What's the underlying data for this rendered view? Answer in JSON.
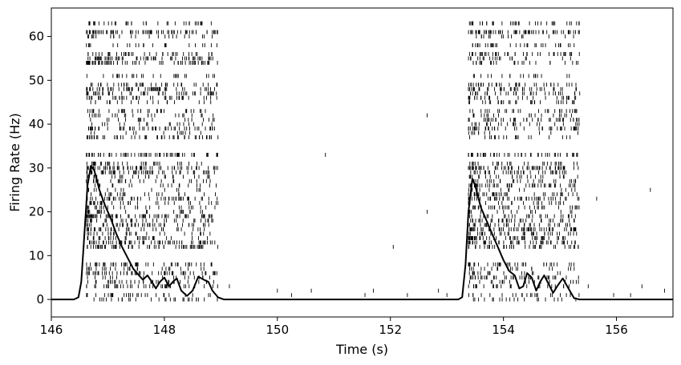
{
  "chart_data": {
    "type": "line",
    "xlabel": "Time (s)",
    "ylabel": "Firing Rate (Hz)",
    "xlim": [
      146,
      157
    ],
    "ylim": [
      -4,
      66.5
    ],
    "grid": false,
    "legend": "none",
    "x_ticks": [
      146,
      148,
      150,
      152,
      154,
      156
    ],
    "y_ticks": [
      0,
      10,
      20,
      30,
      40,
      50,
      60
    ],
    "colors": {
      "line": "#000000",
      "raster": "#000000",
      "background": "#ffffff"
    },
    "series": [
      {
        "kind": "smoothed-firing-rate",
        "points": [
          [
            146.0,
            0
          ],
          [
            146.4,
            0
          ],
          [
            146.48,
            0.5
          ],
          [
            146.53,
            4
          ],
          [
            146.58,
            14
          ],
          [
            146.64,
            26
          ],
          [
            146.7,
            30.5
          ],
          [
            146.76,
            29.5
          ],
          [
            146.85,
            25
          ],
          [
            146.95,
            21.5
          ],
          [
            147.05,
            18.5
          ],
          [
            147.15,
            15
          ],
          [
            147.25,
            12
          ],
          [
            147.35,
            9.5
          ],
          [
            147.45,
            7
          ],
          [
            147.55,
            5.5
          ],
          [
            147.62,
            4.5
          ],
          [
            147.7,
            5.5
          ],
          [
            147.78,
            4
          ],
          [
            147.85,
            2.5
          ],
          [
            147.92,
            4
          ],
          [
            148.0,
            5
          ],
          [
            148.08,
            3
          ],
          [
            148.15,
            4
          ],
          [
            148.22,
            4.8
          ],
          [
            148.3,
            2
          ],
          [
            148.4,
            0.8
          ],
          [
            148.5,
            2
          ],
          [
            148.6,
            5.2
          ],
          [
            148.7,
            4.5
          ],
          [
            148.78,
            4
          ],
          [
            148.85,
            2
          ],
          [
            148.95,
            0.5
          ],
          [
            149.05,
            0
          ],
          [
            153.2,
            0
          ],
          [
            153.27,
            0.5
          ],
          [
            153.33,
            8
          ],
          [
            153.38,
            20
          ],
          [
            153.45,
            27.5
          ],
          [
            153.5,
            26
          ],
          [
            153.6,
            21
          ],
          [
            153.7,
            18
          ],
          [
            153.8,
            15
          ],
          [
            153.9,
            12
          ],
          [
            154.0,
            9
          ],
          [
            154.1,
            6.5
          ],
          [
            154.2,
            5.5
          ],
          [
            154.28,
            2.5
          ],
          [
            154.35,
            3
          ],
          [
            154.42,
            6
          ],
          [
            154.5,
            5
          ],
          [
            154.58,
            2
          ],
          [
            154.65,
            4
          ],
          [
            154.72,
            5.5
          ],
          [
            154.8,
            3.5
          ],
          [
            154.88,
            1.5
          ],
          [
            154.95,
            3
          ],
          [
            155.05,
            4.8
          ],
          [
            155.15,
            2.5
          ],
          [
            155.25,
            0.3
          ],
          [
            155.35,
            0
          ],
          [
            157.0,
            0
          ]
        ]
      }
    ],
    "raster": {
      "kind": "spike-raster",
      "units": 64,
      "unit_y_offset": 0,
      "tick_half_height": 0.45,
      "bursts": [
        {
          "start": 146.62,
          "end": 148.95
        },
        {
          "start": 153.38,
          "end": 155.35
        }
      ],
      "sparse_spikes": [
        [
          147.05,
          1
        ],
        [
          149.15,
          3
        ],
        [
          150.0,
          2
        ],
        [
          150.25,
          1
        ],
        [
          150.6,
          2
        ],
        [
          150.85,
          33
        ],
        [
          151.55,
          1
        ],
        [
          151.7,
          2
        ],
        [
          152.05,
          12
        ],
        [
          152.3,
          1
        ],
        [
          152.65,
          42
        ],
        [
          152.65,
          20
        ],
        [
          152.85,
          2
        ],
        [
          153.0,
          1
        ],
        [
          155.5,
          3
        ],
        [
          155.65,
          23
        ],
        [
          155.95,
          1
        ],
        [
          156.25,
          1
        ],
        [
          156.45,
          3
        ],
        [
          156.6,
          25
        ],
        [
          156.85,
          2
        ]
      ]
    }
  }
}
